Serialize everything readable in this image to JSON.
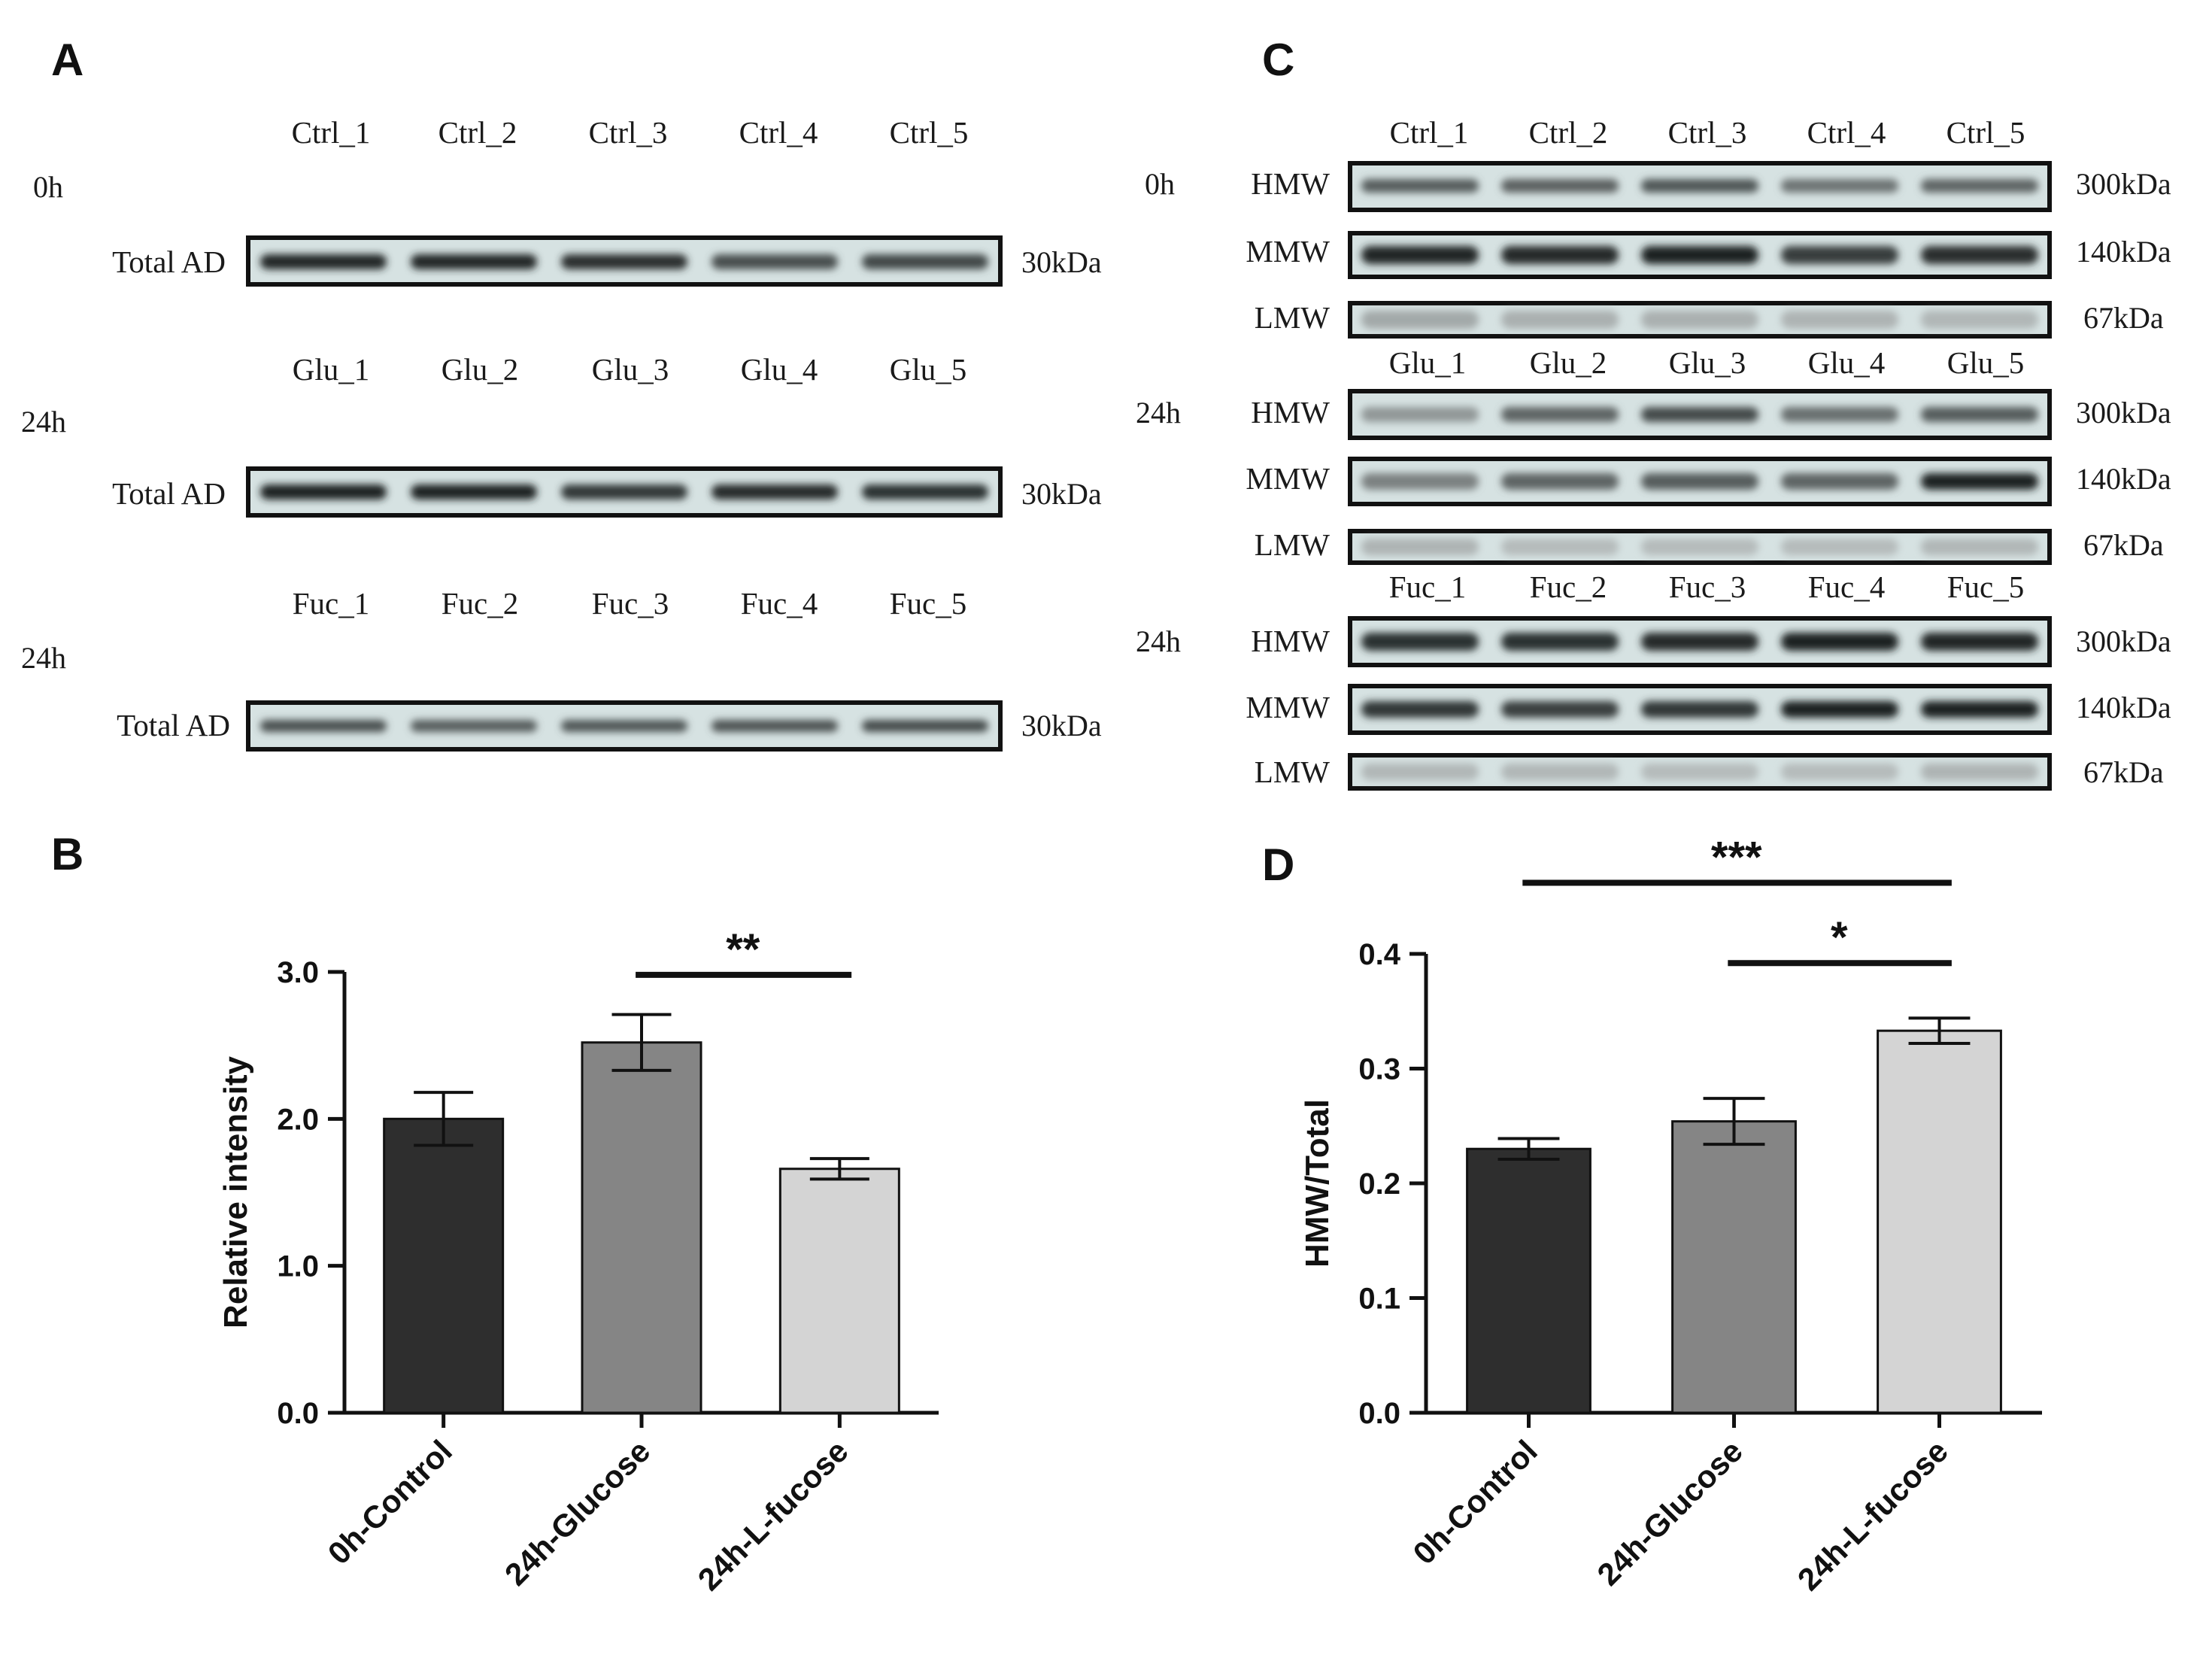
{
  "panels": {
    "A": {
      "letter": "A",
      "blots": [
        {
          "time": "0h",
          "lanes": [
            "Ctrl_1",
            "Ctrl_2",
            "Ctrl_3",
            "Ctrl_4",
            "Ctrl_5"
          ],
          "row_label": "Total AD",
          "kda": "30kDa",
          "band_intensity": [
            0.92,
            0.92,
            0.88,
            0.7,
            0.74
          ]
        },
        {
          "time": "24h",
          "lanes": [
            "Glu_1",
            "Glu_2",
            "Glu_3",
            "Glu_4",
            "Glu_5"
          ],
          "row_label": "Total AD",
          "kda": "30kDa",
          "band_intensity": [
            0.95,
            0.94,
            0.82,
            0.9,
            0.86
          ]
        },
        {
          "time": "24h",
          "lanes": [
            "Fuc_1",
            "Fuc_2",
            "Fuc_3",
            "Fuc_4",
            "Fuc_5"
          ],
          "row_label": "Total AD",
          "kda": "30kDa",
          "band_intensity": [
            0.7,
            0.62,
            0.66,
            0.68,
            0.72
          ]
        }
      ]
    },
    "C": {
      "letter": "C",
      "groups": [
        {
          "time": "0h",
          "lanes": [
            "Ctrl_1",
            "Ctrl_2",
            "Ctrl_3",
            "Ctrl_4",
            "Ctrl_5"
          ],
          "rows": [
            {
              "label": "HMW",
              "kda": "300kDa",
              "band_intensity": [
                0.62,
                0.6,
                0.66,
                0.5,
                0.58
              ]
            },
            {
              "label": "MMW",
              "kda": "140kDa",
              "band_intensity": [
                0.92,
                0.9,
                0.95,
                0.8,
                0.88
              ]
            },
            {
              "label": "LMW",
              "kda": "67kDa",
              "band_intensity": [
                0.2,
                0.16,
                0.16,
                0.14,
                0.12
              ]
            }
          ]
        },
        {
          "time": "24h",
          "lanes": [
            "Glu_1",
            "Glu_2",
            "Glu_3",
            "Glu_4",
            "Glu_5"
          ],
          "rows": [
            {
              "label": "HMW",
              "kda": "300kDa",
              "band_intensity": [
                0.3,
                0.58,
                0.72,
                0.52,
                0.62
              ]
            },
            {
              "label": "MMW",
              "kda": "140kDa",
              "band_intensity": [
                0.42,
                0.58,
                0.62,
                0.58,
                0.95
              ]
            },
            {
              "label": "LMW",
              "kda": "67kDa",
              "band_intensity": [
                0.14,
                0.1,
                0.1,
                0.1,
                0.12
              ]
            }
          ]
        },
        {
          "time": "24h",
          "lanes": [
            "Fuc_1",
            "Fuc_2",
            "Fuc_3",
            "Fuc_4",
            "Fuc_5"
          ],
          "rows": [
            {
              "label": "HMW",
              "kda": "300kDa",
              "band_intensity": [
                0.86,
                0.86,
                0.9,
                0.95,
                0.92
              ]
            },
            {
              "label": "MMW",
              "kda": "140kDa",
              "band_intensity": [
                0.82,
                0.78,
                0.82,
                0.94,
                0.96
              ]
            },
            {
              "label": "LMW",
              "kda": "67kDa",
              "band_intensity": [
                0.12,
                0.12,
                0.1,
                0.1,
                0.14
              ]
            }
          ]
        }
      ]
    },
    "B": {
      "letter": "B"
    },
    "D": {
      "letter": "D"
    }
  },
  "chart_data": [
    {
      "panel": "B",
      "type": "bar",
      "categories": [
        "0h-Control",
        "24h-Glucose",
        "24h-L-fucose"
      ],
      "values": [
        2.0,
        2.52,
        1.66
      ],
      "errors": [
        0.18,
        0.19,
        0.07
      ],
      "colors": [
        "#2e2e2e",
        "#858585",
        "#d4d4d4"
      ],
      "ylabel": "Relative intensity",
      "ylim": [
        0,
        3.0
      ],
      "yticks": [
        0.0,
        1.0,
        2.0,
        3.0
      ],
      "ytick_labels": [
        "0.0",
        "1.0",
        "2.0",
        "3.0"
      ],
      "significance": [
        {
          "from": 1,
          "to": 2,
          "label": "**",
          "y": 2.98
        }
      ]
    },
    {
      "panel": "D",
      "type": "bar",
      "categories": [
        "0h-Control",
        "24h-Glucose",
        "24h-L-fucose"
      ],
      "values": [
        0.23,
        0.254,
        0.333
      ],
      "errors": [
        0.009,
        0.02,
        0.011
      ],
      "colors": [
        "#2e2e2e",
        "#858585",
        "#d4d4d4"
      ],
      "ylabel": "HMW/Total",
      "ylim": [
        0,
        0.4
      ],
      "yticks": [
        0.0,
        0.1,
        0.2,
        0.3,
        0.4
      ],
      "ytick_labels": [
        "0.0",
        "0.1",
        "0.2",
        "0.3",
        "0.4"
      ],
      "significance": [
        {
          "from": 0,
          "to": 2,
          "label": "***",
          "y": 0.462
        },
        {
          "from": 1,
          "to": 2,
          "label": "*",
          "y": 0.392
        }
      ]
    }
  ]
}
